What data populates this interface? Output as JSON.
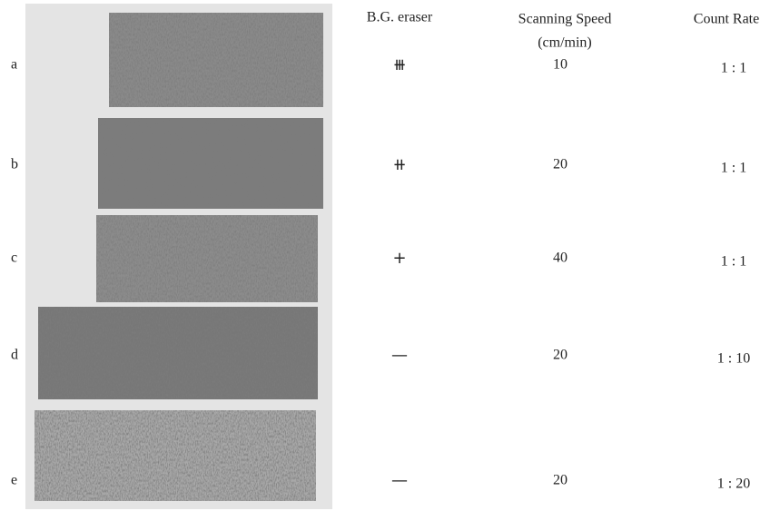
{
  "header": {
    "eraser": "B.G. eraser",
    "speed": "Scanning Speed",
    "speed_unit": "(cm/min)",
    "count_rate": "Count Rate"
  },
  "rows": [
    {
      "label": "a",
      "eraser": "⧻",
      "speed": 10,
      "count_rate": "1 : 1"
    },
    {
      "label": "b",
      "eraser": "⧺",
      "speed": 20,
      "count_rate": "1 : 1"
    },
    {
      "label": "c",
      "eraser": "+",
      "speed": 40,
      "count_rate": "1 : 1"
    },
    {
      "label": "d",
      "eraser": "—",
      "speed": 20,
      "count_rate": "1 : 10"
    },
    {
      "label": "e",
      "eraser": "—",
      "speed": 20,
      "count_rate": "1 : 20"
    }
  ]
}
